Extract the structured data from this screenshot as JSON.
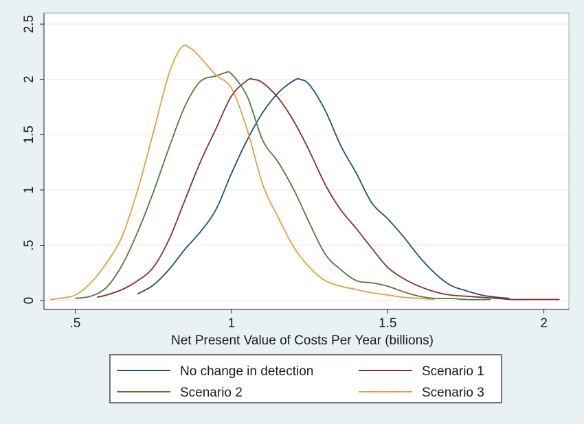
{
  "chart_data": {
    "type": "line",
    "title": "",
    "xlabel": "Net Present Value of Costs Per Year (billions)",
    "ylabel": "",
    "xlim": [
      0.4,
      2.08
    ],
    "ylim": [
      -0.08,
      2.6
    ],
    "xticks": [
      {
        "value": 0.5,
        "label": ".5"
      },
      {
        "value": 1.0,
        "label": "1"
      },
      {
        "value": 1.5,
        "label": "1.5"
      },
      {
        "value": 2.0,
        "label": "2"
      }
    ],
    "yticks": [
      {
        "value": 0,
        "label": "0"
      },
      {
        "value": 0.5,
        "label": ".5"
      },
      {
        "value": 1.0,
        "label": "1"
      },
      {
        "value": 1.5,
        "label": "1.5"
      },
      {
        "value": 2.0,
        "label": "2"
      },
      {
        "value": 2.5,
        "label": "2.5"
      }
    ],
    "grid": "horizontal",
    "legend_position": "bottom",
    "series": [
      {
        "name": "No change in detection",
        "color": "#1f4e79",
        "x": [
          0.7,
          0.75,
          0.8,
          0.85,
          0.9,
          0.95,
          1.0,
          1.05,
          1.1,
          1.15,
          1.2,
          1.22,
          1.25,
          1.3,
          1.35,
          1.4,
          1.45,
          1.5,
          1.55,
          1.6,
          1.65,
          1.7,
          1.75,
          1.8,
          1.85,
          1.89
        ],
        "y": [
          0.06,
          0.14,
          0.28,
          0.46,
          0.62,
          0.82,
          1.15,
          1.45,
          1.7,
          1.88,
          1.99,
          2.0,
          1.95,
          1.72,
          1.4,
          1.15,
          0.88,
          0.74,
          0.58,
          0.4,
          0.25,
          0.14,
          0.09,
          0.05,
          0.03,
          0.02
        ]
      },
      {
        "name": "Scenario 1",
        "color": "#8b2c2c",
        "x": [
          0.57,
          0.6,
          0.65,
          0.7,
          0.75,
          0.8,
          0.85,
          0.9,
          0.95,
          1.0,
          1.05,
          1.07,
          1.1,
          1.15,
          1.2,
          1.25,
          1.3,
          1.35,
          1.4,
          1.45,
          1.5,
          1.55,
          1.6,
          1.65,
          1.7,
          1.75,
          1.8,
          1.85,
          1.9,
          1.95,
          2.0,
          2.05
        ],
        "y": [
          0.03,
          0.05,
          0.1,
          0.18,
          0.3,
          0.55,
          0.9,
          1.25,
          1.55,
          1.85,
          1.99,
          2.0,
          1.97,
          1.83,
          1.62,
          1.35,
          1.05,
          0.82,
          0.65,
          0.47,
          0.3,
          0.2,
          0.13,
          0.08,
          0.05,
          0.04,
          0.03,
          0.02,
          0.01,
          0.01,
          0.01,
          0.01
        ]
      },
      {
        "name": "Scenario 2",
        "color": "#4e7a36",
        "x": [
          0.5,
          0.55,
          0.6,
          0.65,
          0.7,
          0.75,
          0.8,
          0.85,
          0.9,
          0.95,
          0.98,
          1.0,
          1.05,
          1.1,
          1.15,
          1.2,
          1.25,
          1.3,
          1.35,
          1.4,
          1.45,
          1.5,
          1.55,
          1.6,
          1.65,
          1.7,
          1.75,
          1.83
        ],
        "y": [
          0.02,
          0.04,
          0.12,
          0.32,
          0.62,
          0.98,
          1.38,
          1.75,
          1.98,
          2.03,
          2.06,
          2.05,
          1.85,
          1.45,
          1.25,
          1.0,
          0.7,
          0.42,
          0.28,
          0.18,
          0.16,
          0.13,
          0.08,
          0.04,
          0.02,
          0.02,
          0.01,
          0.01
        ]
      },
      {
        "name": "Scenario 3",
        "color": "#e3a03a",
        "x": [
          0.42,
          0.45,
          0.5,
          0.55,
          0.6,
          0.65,
          0.7,
          0.75,
          0.8,
          0.84,
          0.87,
          0.9,
          0.95,
          1.0,
          1.05,
          1.1,
          1.15,
          1.2,
          1.25,
          1.3,
          1.35,
          1.4,
          1.45,
          1.5,
          1.55,
          1.6,
          1.65
        ],
        "y": [
          0.01,
          0.02,
          0.05,
          0.16,
          0.34,
          0.58,
          1.0,
          1.52,
          2.05,
          2.29,
          2.28,
          2.2,
          2.04,
          1.92,
          1.55,
          1.05,
          0.75,
          0.48,
          0.3,
          0.18,
          0.13,
          0.1,
          0.07,
          0.05,
          0.03,
          0.02,
          0.01
        ]
      }
    ]
  }
}
